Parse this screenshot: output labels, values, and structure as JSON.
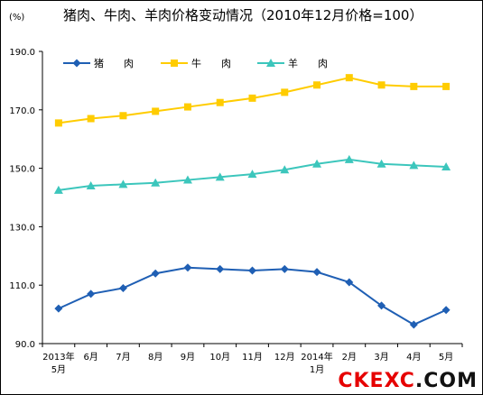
{
  "chart_data": {
    "type": "line",
    "title": "猪肉、牛肉、羊肉价格变动情况（2010年12月价格=100）",
    "unit": "(%)",
    "ylim": [
      90,
      190
    ],
    "yticks": [
      "190.0",
      "170.0",
      "150.0",
      "130.0",
      "110.0",
      "90.0"
    ],
    "categories": [
      [
        "2013年",
        "5月"
      ],
      [
        "6月"
      ],
      [
        "7月"
      ],
      [
        "8月"
      ],
      [
        "9月"
      ],
      [
        "10月"
      ],
      [
        "11月"
      ],
      [
        "12月"
      ],
      [
        "2014年",
        "1月"
      ],
      [
        "2月"
      ],
      [
        "3月"
      ],
      [
        "4月"
      ],
      [
        "5月"
      ]
    ],
    "grid": false,
    "legend_position": "top-left",
    "series": [
      {
        "name": "猪　　肉",
        "color": "#1f5fb4",
        "marker": "diamond",
        "values": [
          102,
          107,
          109,
          114,
          116,
          115.5,
          115,
          115.5,
          114.5,
          111,
          103,
          96.5,
          101.5
        ]
      },
      {
        "name": "牛　　肉",
        "color": "#ffcc00",
        "marker": "square",
        "values": [
          165.5,
          167,
          168,
          169.5,
          171,
          172.5,
          174,
          176,
          178.5,
          181,
          178.5,
          178,
          178
        ]
      },
      {
        "name": "羊　　肉",
        "color": "#3cc6bc",
        "marker": "triangle",
        "values": [
          142.5,
          144,
          144.5,
          145,
          146,
          147,
          148,
          149.5,
          151.5,
          153,
          151.5,
          151,
          150.5
        ]
      }
    ]
  },
  "watermark": {
    "part1": "CKEXC",
    "part2": ".COM"
  }
}
